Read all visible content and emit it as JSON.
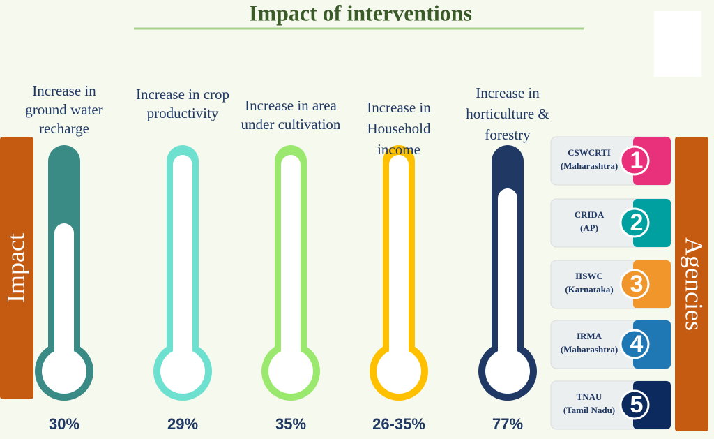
{
  "title": "Impact of interventions",
  "left_label": "Impact",
  "right_label": "Agencies",
  "impacts": [
    {
      "lines": [
        "Increase in",
        "ground water",
        "recharge"
      ],
      "value": "30%"
    },
    {
      "lines": [
        "Increase in crop",
        "productivity"
      ],
      "value": "29%"
    },
    {
      "lines": [
        "Increase in area",
        "under cultivation"
      ],
      "value": "35%"
    },
    {
      "lines": [
        "Increase in",
        "Household",
        "income"
      ],
      "value": "26-35%"
    },
    {
      "lines": [
        "Increase in",
        "horticulture &",
        "forestry"
      ],
      "value": "77%"
    }
  ],
  "agencies": [
    {
      "name": "CSWCRTI",
      "place": "(Maharashtra)",
      "number": "1"
    },
    {
      "name": "CRIDA",
      "place": "(AP)",
      "number": "2"
    },
    {
      "name": "IISWC",
      "place": "(Karnataka)",
      "number": "3"
    },
    {
      "name": "IRMA",
      "place": "(Maharashtra)",
      "number": "4"
    },
    {
      "name": "TNAU",
      "place": "(Tamil Nadu)",
      "number": "5"
    }
  ]
}
